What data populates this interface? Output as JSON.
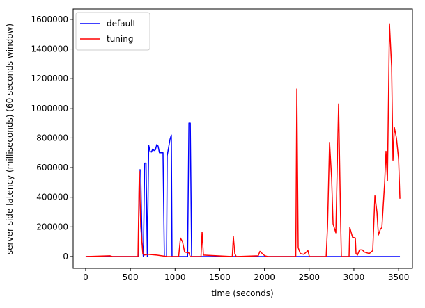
{
  "chart_data": {
    "type": "line",
    "xlabel": "time (seconds)",
    "ylabel": "server side latency (milliseconds) (60 seconds window)",
    "xlim": [
      -140,
      3655
    ],
    "ylim": [
      -80000,
      1670000
    ],
    "xticks": [
      0,
      500,
      1000,
      1500,
      2000,
      2500,
      3000,
      3500
    ],
    "yticks": [
      0,
      200000,
      400000,
      600000,
      800000,
      1000000,
      1200000,
      1400000,
      1600000
    ],
    "grid": false,
    "legend": "upper left",
    "series": [
      {
        "name": "default",
        "color": "#0000ff",
        "x": [
          0,
          590,
          600,
          615,
          630,
          645,
          660,
          675,
          690,
          705,
          720,
          735,
          750,
          765,
          780,
          795,
          810,
          825,
          865,
          880,
          905,
          912,
          943,
          958,
          966,
          1140,
          1155,
          1170,
          1185,
          3515
        ],
        "values": [
          0,
          0,
          585000,
          585000,
          100000,
          0,
          630000,
          630000,
          0,
          750000,
          710000,
          705000,
          725000,
          715000,
          720000,
          755000,
          745000,
          700000,
          700000,
          0,
          0,
          680000,
          790000,
          820000,
          0,
          0,
          900000,
          900000,
          0,
          0
        ]
      },
      {
        "name": "tuning",
        "color": "#ff0000",
        "x": [
          0,
          270,
          300,
          585,
          600,
          616,
          639,
          655,
          694,
          795,
          912,
          1040,
          1060,
          1083,
          1107,
          1154,
          1169,
          1290,
          1302,
          1317,
          1640,
          1652,
          1668,
          1684,
          1930,
          1949,
          2003,
          2040,
          2350,
          2362,
          2377,
          2401,
          2440,
          2486,
          2502,
          2690,
          2705,
          2728,
          2751,
          2767,
          2798,
          2829,
          2853,
          2860,
          2946,
          2954,
          2985,
          3016,
          3024,
          3040,
          3063,
          3094,
          3118,
          3172,
          3211,
          3235,
          3258,
          3274,
          3297,
          3313,
          3344,
          3359,
          3375,
          3398,
          3422,
          3437,
          3453,
          3476,
          3500,
          3515
        ],
        "values": [
          0,
          5000,
          0,
          0,
          575000,
          200000,
          20000,
          10000,
          15000,
          10000,
          0,
          0,
          125000,
          100000,
          30000,
          25000,
          0,
          0,
          165000,
          10000,
          0,
          135000,
          20000,
          0,
          5000,
          35000,
          5000,
          0,
          0,
          1130000,
          60000,
          20000,
          15000,
          40000,
          0,
          0,
          200000,
          770000,
          530000,
          220000,
          160000,
          1030000,
          200000,
          0,
          0,
          195000,
          130000,
          125000,
          20000,
          10000,
          45000,
          45000,
          30000,
          20000,
          40000,
          410000,
          300000,
          145000,
          185000,
          195000,
          500000,
          710000,
          510000,
          1570000,
          1280000,
          650000,
          870000,
          800000,
          660000,
          390000
        ]
      }
    ]
  }
}
